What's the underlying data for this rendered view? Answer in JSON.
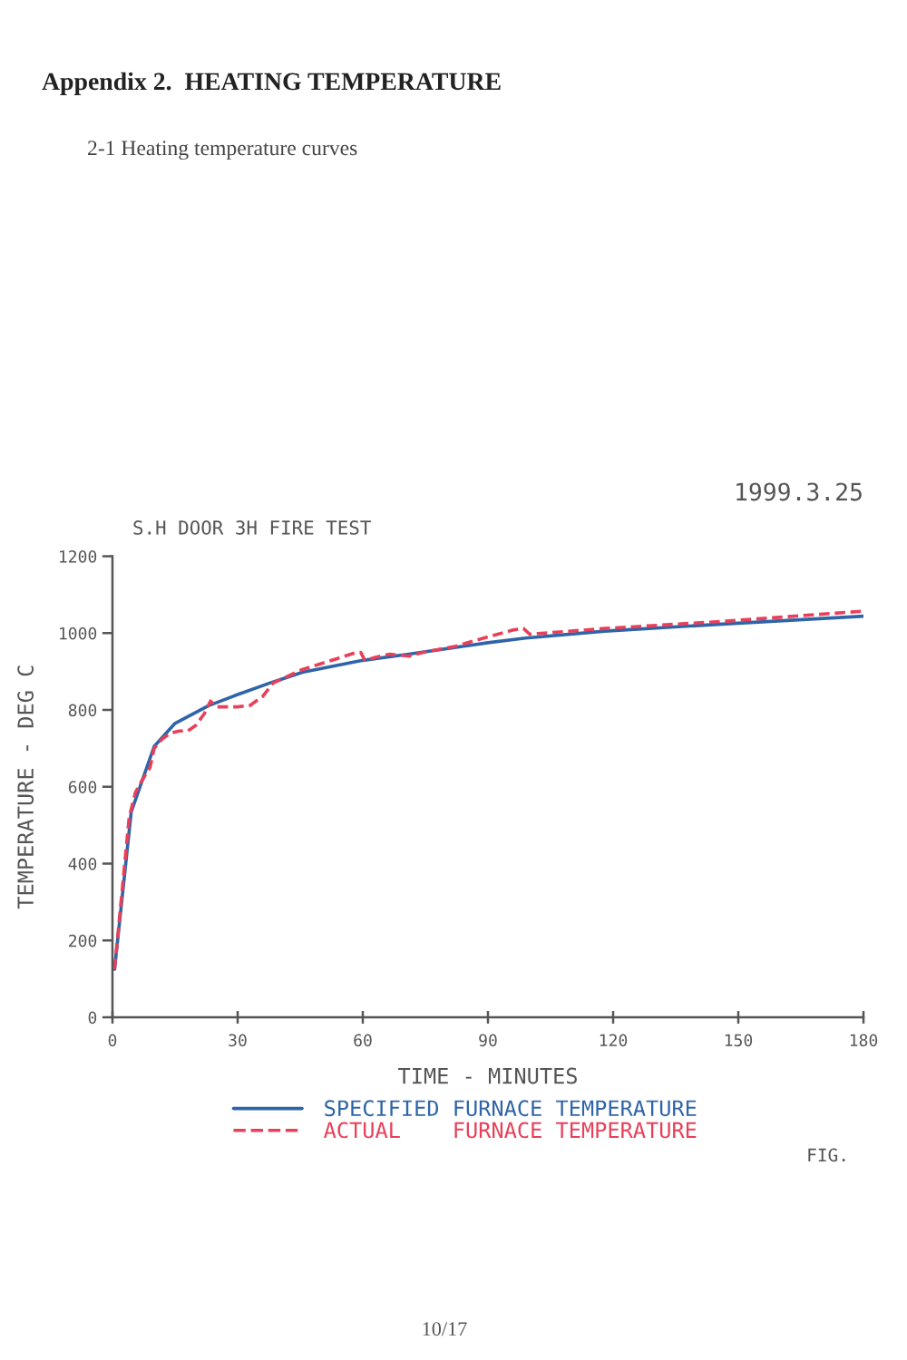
{
  "chart_data": {
    "type": "line",
    "title": "Appendix 2.  HEATING TEMPERATURE",
    "subtitle": "2-1 Heating temperature curves",
    "xlabel": "TIME - MINUTES",
    "ylabel": "TEMPERATURE - DEG C",
    "annotations": [
      "1999.3.25",
      "S.H DOOR 3H FIRE TEST",
      "FIG.",
      "10/17"
    ],
    "xlim": [
      0,
      180
    ],
    "ylim": [
      0,
      1200
    ],
    "xticks": [
      0,
      30,
      60,
      90,
      120,
      150,
      180
    ],
    "yticks": [
      0,
      200,
      400,
      600,
      800,
      1000,
      1200
    ],
    "grid": false,
    "legend": "bottom",
    "marker": "none",
    "series": [
      {
        "name": "SPECIFIED FURNACE TEMPERATURE",
        "color": "#2f64a8",
        "line_style": "solid",
        "x": [
          0.5,
          4.5,
          10,
          15,
          23,
          30,
          38,
          45.5,
          60,
          71,
          90,
          99,
          118,
          147,
          180
        ],
        "values": [
          125,
          535,
          705,
          765,
          811,
          840,
          871,
          898,
          929,
          945,
          975,
          987,
          1005,
          1024,
          1044
        ]
      },
      {
        "name": "ACTUAL    FURNACE TEMPERATURE",
        "color": "#e8405a",
        "line_style": "dashed",
        "x": [
          0.5,
          4,
          5.5,
          7,
          9,
          10,
          12,
          14,
          16,
          18,
          20,
          22,
          23.5,
          25,
          30,
          33,
          36,
          38.5,
          45.5,
          54,
          58.5,
          59.5,
          60.5,
          63,
          66.5,
          71,
          74.5,
          82,
          89,
          96,
          98.5,
          100,
          103.5,
          118,
          147,
          180
        ],
        "values": [
          125,
          520,
          585,
          615,
          650,
          700,
          725,
          740,
          745,
          745,
          760,
          790,
          823,
          808,
          808,
          812,
          835,
          870,
          905,
          934,
          950,
          950,
          929,
          937,
          945,
          940,
          950,
          965,
          987,
          1008,
          1012,
          997,
          1000,
          1012,
          1031,
          1057
        ]
      }
    ]
  }
}
